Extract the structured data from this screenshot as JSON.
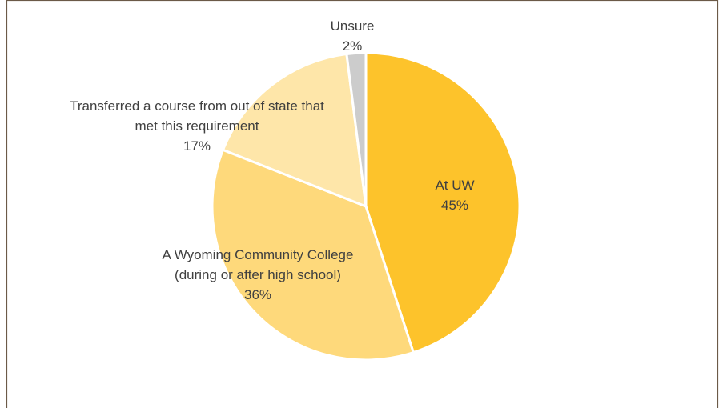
{
  "chart_data": {
    "type": "pie",
    "categories": [
      "At UW",
      "A Wyoming Community College (during or after high school)",
      "Transferred a course from out of state that met this requirement",
      "Unsure"
    ],
    "values": [
      45,
      36,
      17,
      2
    ],
    "value_labels": [
      "45%",
      "36%",
      "17%",
      "2%"
    ],
    "colors": [
      "#fdc32b",
      "#fed97b",
      "#fee6a9",
      "#cccccc"
    ]
  }
}
